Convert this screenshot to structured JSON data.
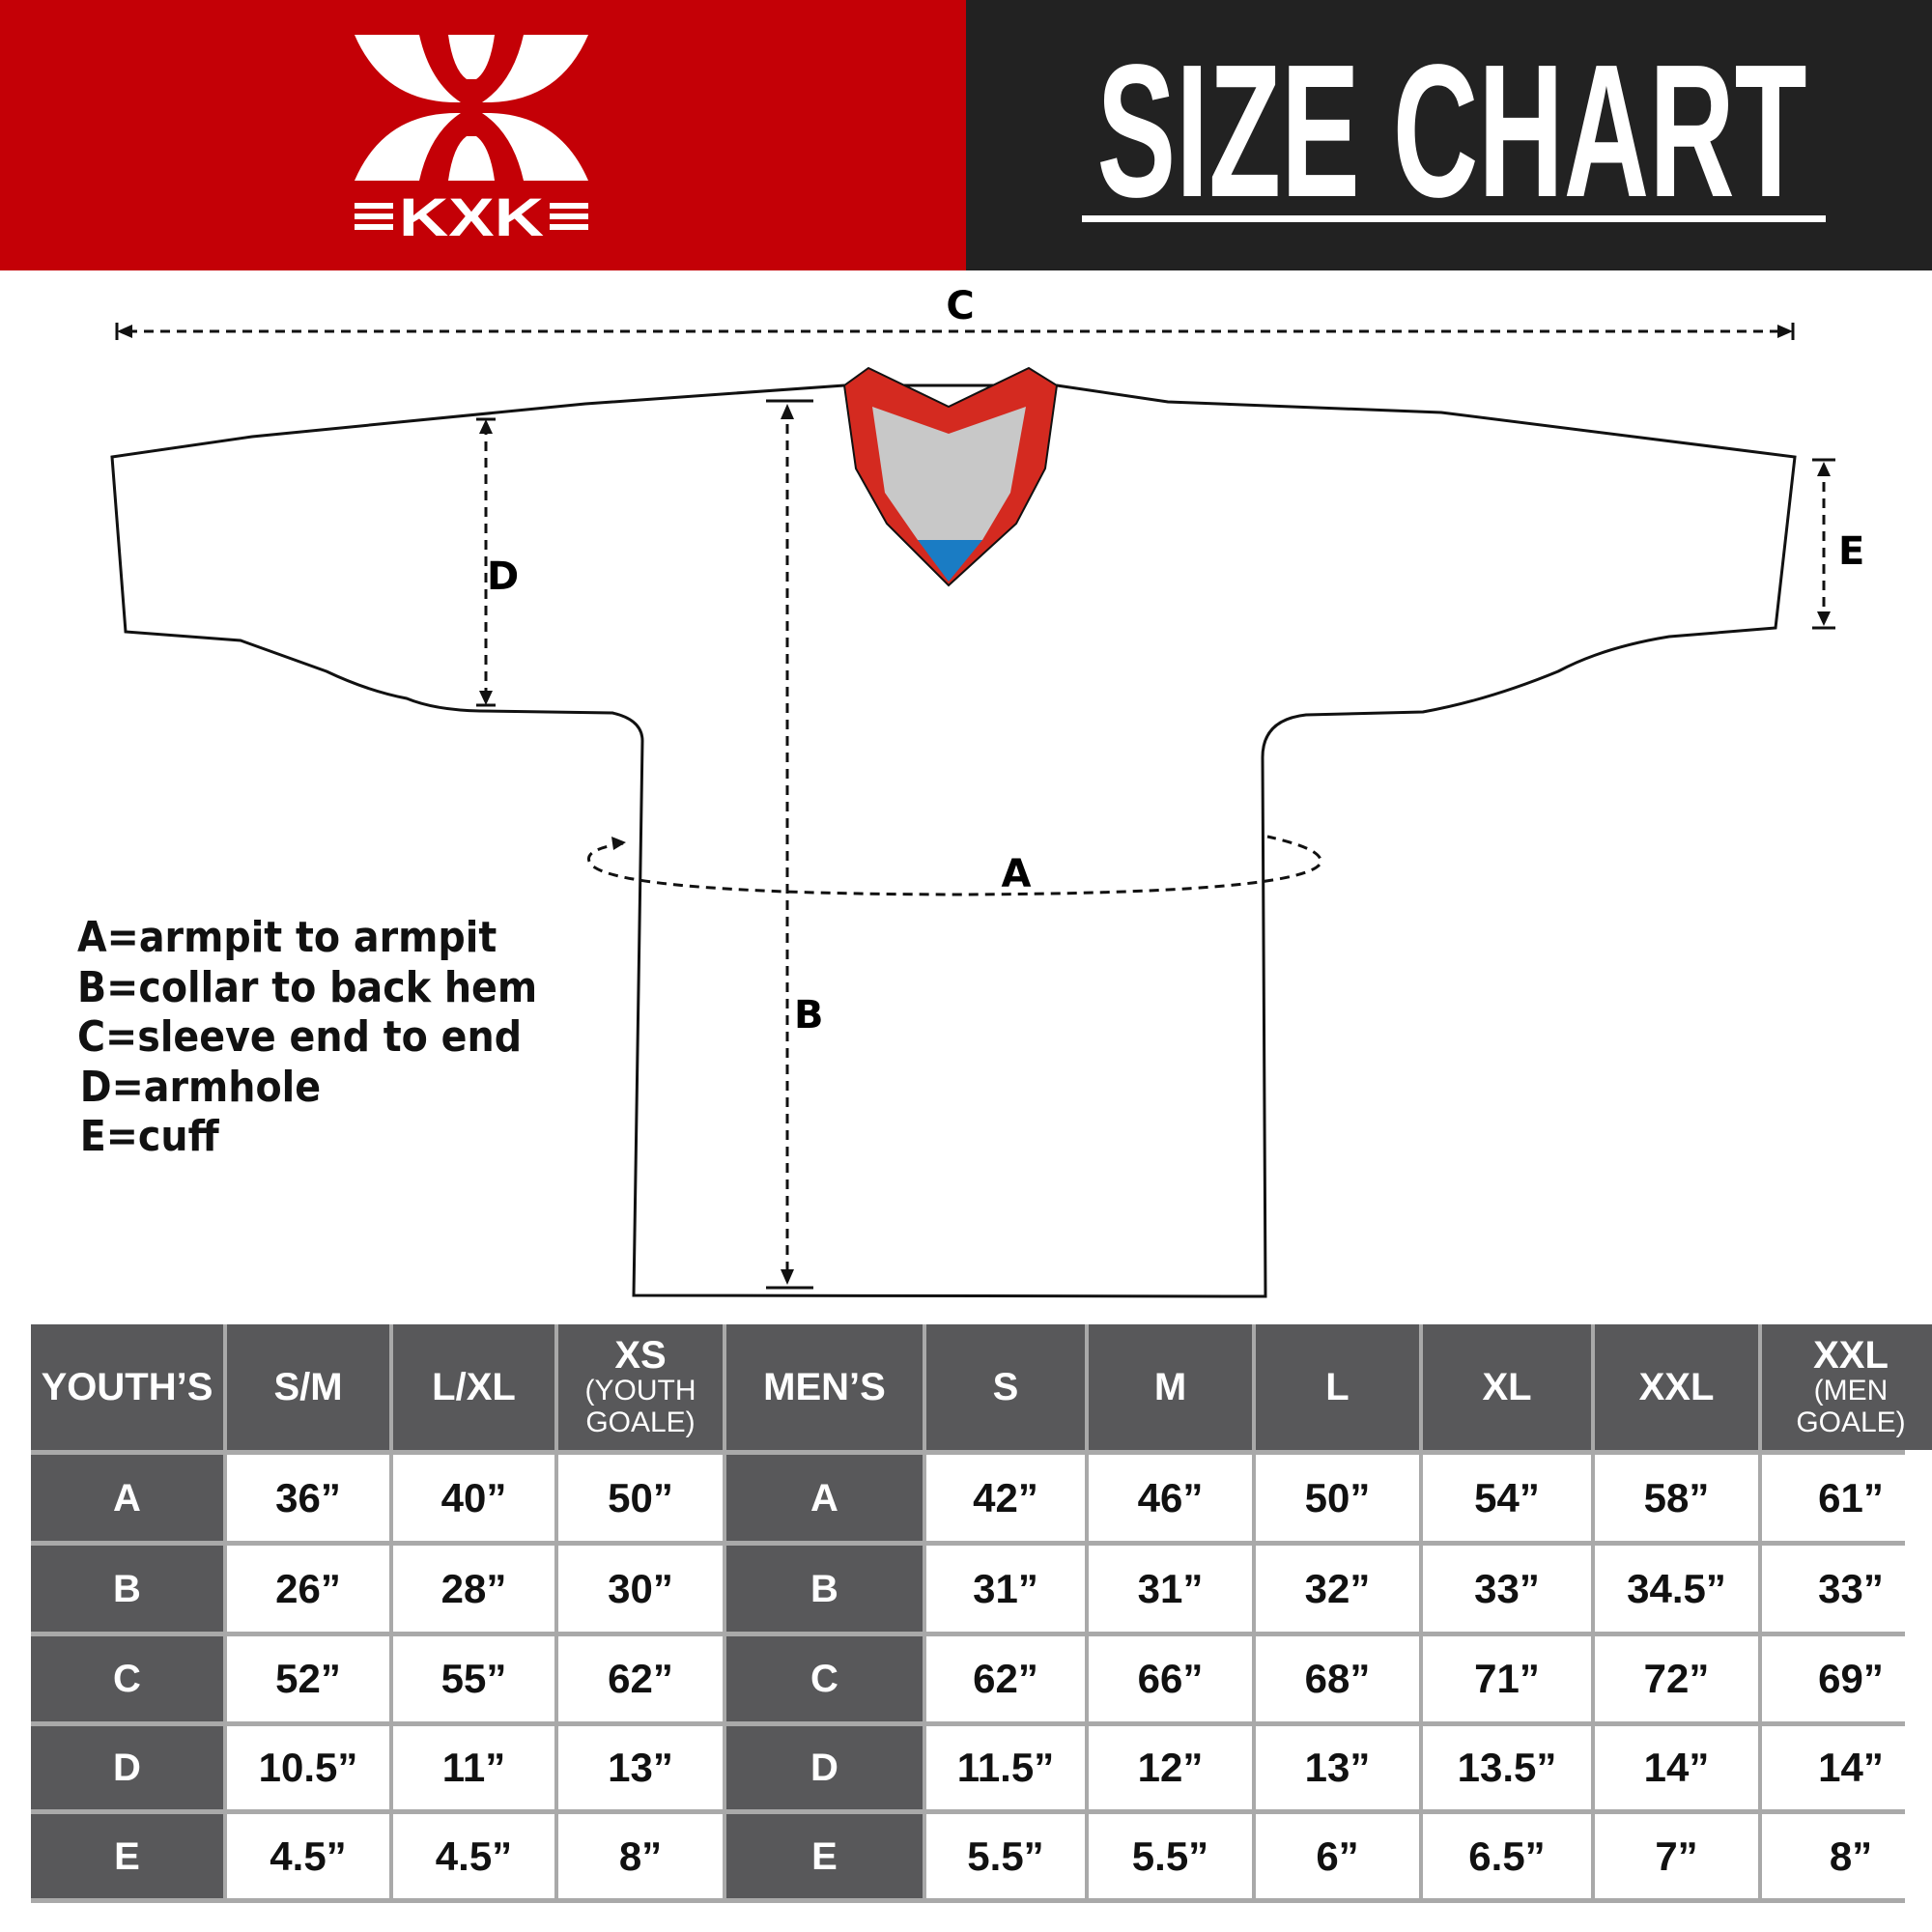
{
  "header": {
    "brand_logo_text": "KXK",
    "title": "SIZE CHART",
    "colors": {
      "brand_red": "#c40006",
      "dark": "#222222",
      "table_header": "#58585a",
      "collar_red": "#d42a20",
      "collar_gray": "#c8c8c8",
      "collar_blue": "#1a7cc4"
    }
  },
  "diagram": {
    "label_a": "A",
    "label_b": "B",
    "label_c": "C",
    "label_d": "D",
    "label_e": "E"
  },
  "legend": [
    "A=armpit to armpit",
    "B=collar to back hem",
    "C=sleeve end to end",
    "D=armhole",
    "E=cuff"
  ],
  "table": {
    "headers": [
      {
        "label": "YOUTH’S",
        "group": true
      },
      {
        "label": "S/M"
      },
      {
        "label": "L/XL"
      },
      {
        "label": "XS",
        "sub": "(YOUTH GOALE)"
      },
      {
        "label": "MEN’S",
        "group": true
      },
      {
        "label": "S"
      },
      {
        "label": "M"
      },
      {
        "label": "L"
      },
      {
        "label": "XL"
      },
      {
        "label": "XXL"
      },
      {
        "label": "XXL",
        "sub": "(MEN GOALE)"
      }
    ],
    "rows": [
      [
        "A",
        "36”",
        "40”",
        "50”",
        "A",
        "42”",
        "46”",
        "50”",
        "54”",
        "58”",
        "61”"
      ],
      [
        "B",
        "26”",
        "28”",
        "30”",
        "B",
        "31”",
        "31”",
        "32”",
        "33”",
        "34.5”",
        "33”"
      ],
      [
        "C",
        "52”",
        "55”",
        "62”",
        "C",
        "62”",
        "66”",
        "68”",
        "71”",
        "72”",
        "69”"
      ],
      [
        "D",
        "10.5”",
        "11”",
        "13”",
        "D",
        "11.5”",
        "12”",
        "13”",
        "13.5”",
        "14”",
        "14”"
      ],
      [
        "E",
        "4.5”",
        "4.5”",
        "8”",
        "E",
        "5.5”",
        "5.5”",
        "6”",
        "6.5”",
        "7”",
        "8”"
      ]
    ]
  }
}
